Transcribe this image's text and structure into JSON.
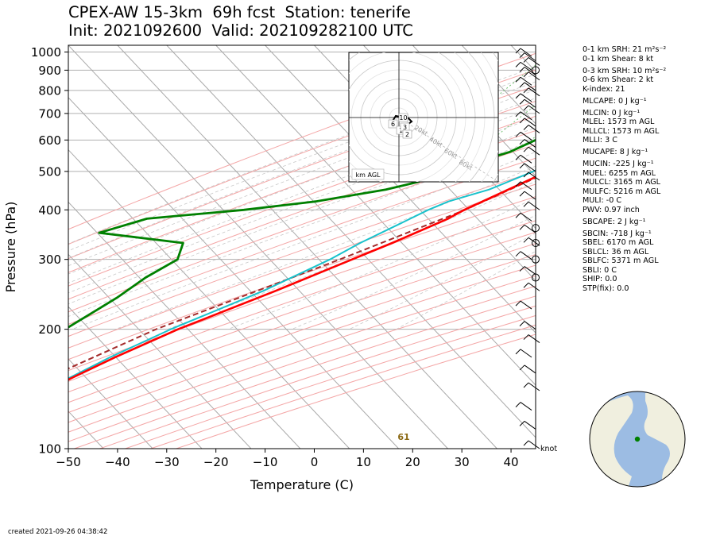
{
  "title": {
    "line1": "CPEX-AW 15-3km  69h fcst  Station: tenerife",
    "line2": "Init: 2021092600  Valid: 202109282100 UTC"
  },
  "colors": {
    "temperature": "#ff0000",
    "virtual_temperature": "#ff5a5a",
    "dewpoint": "#008000",
    "wetbulb": "#19c2cc",
    "parcel": "#a52a2a",
    "isotherm": "#a9a9a9",
    "dry_adiabat": "#f4a6a6",
    "moist_adiabat": "#c8c8c8",
    "mixing_ratio": "#6fbf6f",
    "ocean": "#9cbce3",
    "land": "#f0efdf"
  },
  "chart_data": {
    "type": "line",
    "subtype": "skew-T log-P sounding",
    "xlabel": "Temperature (C)",
    "ylabel": "Pressure (hPa)",
    "xlim": [
      -50,
      45
    ],
    "ylim": [
      1040,
      100
    ],
    "y_scale": "log",
    "x_ticks": [
      "−50",
      "−40",
      "−30",
      "−20",
      "−10",
      "0",
      "10",
      "20",
      "30",
      "40"
    ],
    "x_tick_values": [
      -50,
      -40,
      -30,
      -20,
      -10,
      0,
      10,
      20,
      30,
      40
    ],
    "y_ticks": [
      1000,
      900,
      800,
      700,
      600,
      500,
      400,
      300,
      200,
      100
    ],
    "grid": true,
    "lcl_label": "61",
    "wind_units": "knot",
    "series": [
      {
        "key": "temperature",
        "points": [
          [
            1000,
            27.1
          ],
          [
            975,
            24
          ],
          [
            940,
            22
          ],
          [
            920,
            20.6
          ],
          [
            905,
            20.6
          ],
          [
            880,
            18.9
          ],
          [
            850,
            17.4
          ],
          [
            800,
            14.6
          ],
          [
            750,
            11.5
          ],
          [
            700,
            8.6
          ],
          [
            650,
            5.4
          ],
          [
            600,
            1.9
          ],
          [
            550,
            -1.6
          ],
          [
            500,
            -5.6
          ],
          [
            450,
            -10.1
          ],
          [
            400,
            -15.2
          ],
          [
            380,
            -16.8
          ],
          [
            330,
            -23.5
          ],
          [
            300,
            -28.5
          ],
          [
            250,
            -38
          ],
          [
            200,
            -50.5
          ],
          [
            170,
            -58
          ],
          [
            150,
            -63
          ],
          [
            130,
            -67
          ],
          [
            115,
            -69
          ],
          [
            100,
            -71
          ]
        ]
      },
      {
        "key": "virtual_temperature",
        "points": [
          [
            1000,
            29
          ],
          [
            975,
            25.4
          ],
          [
            940,
            23.5
          ],
          [
            920,
            21.2
          ],
          [
            905,
            21.2
          ],
          [
            880,
            19.4
          ],
          [
            850,
            18
          ],
          [
            800,
            15.2
          ],
          [
            750,
            12
          ],
          [
            700,
            9
          ],
          [
            650,
            5.8
          ],
          [
            600,
            2.2
          ],
          [
            550,
            -1.5
          ],
          [
            500,
            -5.5
          ],
          [
            450,
            -10
          ],
          [
            400,
            -15.1
          ],
          [
            380,
            -16.7
          ],
          [
            330,
            -23.4
          ],
          [
            300,
            -28.4
          ],
          [
            250,
            -38
          ],
          [
            200,
            -50.5
          ],
          [
            170,
            -58
          ],
          [
            150,
            -63
          ],
          [
            130,
            -67
          ],
          [
            115,
            -69
          ],
          [
            100,
            -71
          ]
        ]
      },
      {
        "key": "dewpoint",
        "points": [
          [
            1000,
            22.6
          ],
          [
            975,
            20.4
          ],
          [
            950,
            16
          ],
          [
            940,
            11.5
          ],
          [
            920,
            3.5
          ],
          [
            905,
            4
          ],
          [
            880,
            4.2
          ],
          [
            850,
            2.8
          ],
          [
            820,
            0.4
          ],
          [
            800,
            -0.3
          ],
          [
            780,
            -1.5
          ],
          [
            750,
            -2.5
          ],
          [
            725,
            -5.5
          ],
          [
            700,
            -6.5
          ],
          [
            680,
            -8.4
          ],
          [
            650,
            -11.3
          ],
          [
            600,
            -14
          ],
          [
            560,
            -17
          ],
          [
            540,
            -20
          ],
          [
            500,
            -25
          ],
          [
            470,
            -30
          ],
          [
            450,
            -35
          ],
          [
            420,
            -47
          ],
          [
            400,
            -60
          ],
          [
            380,
            -78
          ],
          [
            350,
            -85
          ],
          [
            330,
            -66
          ],
          [
            300,
            -64
          ],
          [
            270,
            -67
          ],
          [
            240,
            -69
          ],
          [
            200,
            -73.5
          ],
          [
            180,
            -77
          ],
          [
            160,
            -81.5
          ],
          [
            150,
            -84
          ],
          [
            140,
            -87
          ],
          [
            130,
            -88
          ],
          [
            120,
            -87.5
          ],
          [
            110,
            -87.5
          ],
          [
            100,
            -88
          ]
        ]
      },
      {
        "key": "wetbulb",
        "points": [
          [
            1000,
            23.8
          ],
          [
            975,
            21.5
          ],
          [
            950,
            19.4
          ],
          [
            920,
            14.2
          ],
          [
            905,
            13.6
          ],
          [
            880,
            13.1
          ],
          [
            850,
            12.1
          ],
          [
            820,
            10.5
          ],
          [
            800,
            9.3
          ],
          [
            750,
            6.9
          ],
          [
            700,
            4.6
          ],
          [
            650,
            1.5
          ],
          [
            600,
            -1.5
          ],
          [
            550,
            -4.3
          ],
          [
            500,
            -8.5
          ],
          [
            450,
            -14
          ],
          [
            420,
            -20
          ],
          [
            400,
            -22.5
          ],
          [
            370,
            -25.5
          ],
          [
            330,
            -30
          ],
          [
            300,
            -33
          ],
          [
            250,
            -40.5
          ],
          [
            200,
            -52
          ],
          [
            170,
            -59
          ],
          [
            150,
            -63.5
          ],
          [
            130,
            -67.5
          ],
          [
            115,
            -69.5
          ],
          [
            100,
            -72
          ]
        ]
      },
      {
        "key": "parcel",
        "points": [
          [
            1000,
            26.5
          ],
          [
            935,
            21
          ],
          [
            850,
            18
          ],
          [
            800,
            15.3
          ],
          [
            700,
            9.5
          ],
          [
            600,
            2
          ],
          [
            500,
            -5.2
          ],
          [
            400,
            -15
          ],
          [
            300,
            -31
          ],
          [
            200,
            -55
          ],
          [
            150,
            -68
          ],
          [
            120,
            -77
          ],
          [
            105,
            -82
          ]
        ]
      }
    ],
    "wind_barbs_hpa": [
      975,
      950,
      925,
      900,
      875,
      850,
      825,
      800,
      775,
      750,
      725,
      700,
      675,
      650,
      625,
      600,
      575,
      550,
      525,
      500,
      475,
      450,
      425,
      400,
      375,
      350,
      325,
      300,
      275,
      250,
      225,
      200,
      185,
      170,
      155,
      140,
      125,
      112,
      100
    ],
    "calm_hpa": [
      270,
      300,
      330,
      360,
      900
    ],
    "hodograph": {
      "ring_labels": [
        "20kt",
        "40kt",
        "60kt",
        "80kt"
      ],
      "height_labels": [
        "10",
        "6",
        "1",
        "3",
        "2"
      ],
      "legend": "km AGL"
    }
  },
  "params": [
    "0-1 km SRH: 21 m²s⁻²",
    "0-1 km Shear: 8 kt",
    "0-3 km SRH: 10 m²s⁻²",
    "0-6 km Shear: 2 kt",
    "K-index: 21",
    "MLCAPE: 0 J kg⁻¹",
    "MLCIN: 0 J kg⁻¹",
    "MLEL: 1573 m AGL",
    "MLLCL: 1573 m AGL",
    "MLLI: 3 C",
    "MUCAPE: 8 J kg⁻¹",
    "MUCIN: -225 J kg⁻¹",
    "MUEL: 6255 m AGL",
    "MULCL: 3165 m AGL",
    "MULFC: 5216 m AGL",
    "MULI: -0 C",
    "PWV: 0.97 inch",
    "SBCAPE: 2 J kg⁻¹",
    "SBCIN: -718 J kg⁻¹",
    "SBEL: 6170 m AGL",
    "SBLCL: 36 m AGL",
    "SBLFC: 5371 m AGL",
    "SBLI: 0 C",
    "SHIP: 0.0",
    "STP(fix): 0.0"
  ],
  "created": "created 2021-09-26 04:38:42"
}
